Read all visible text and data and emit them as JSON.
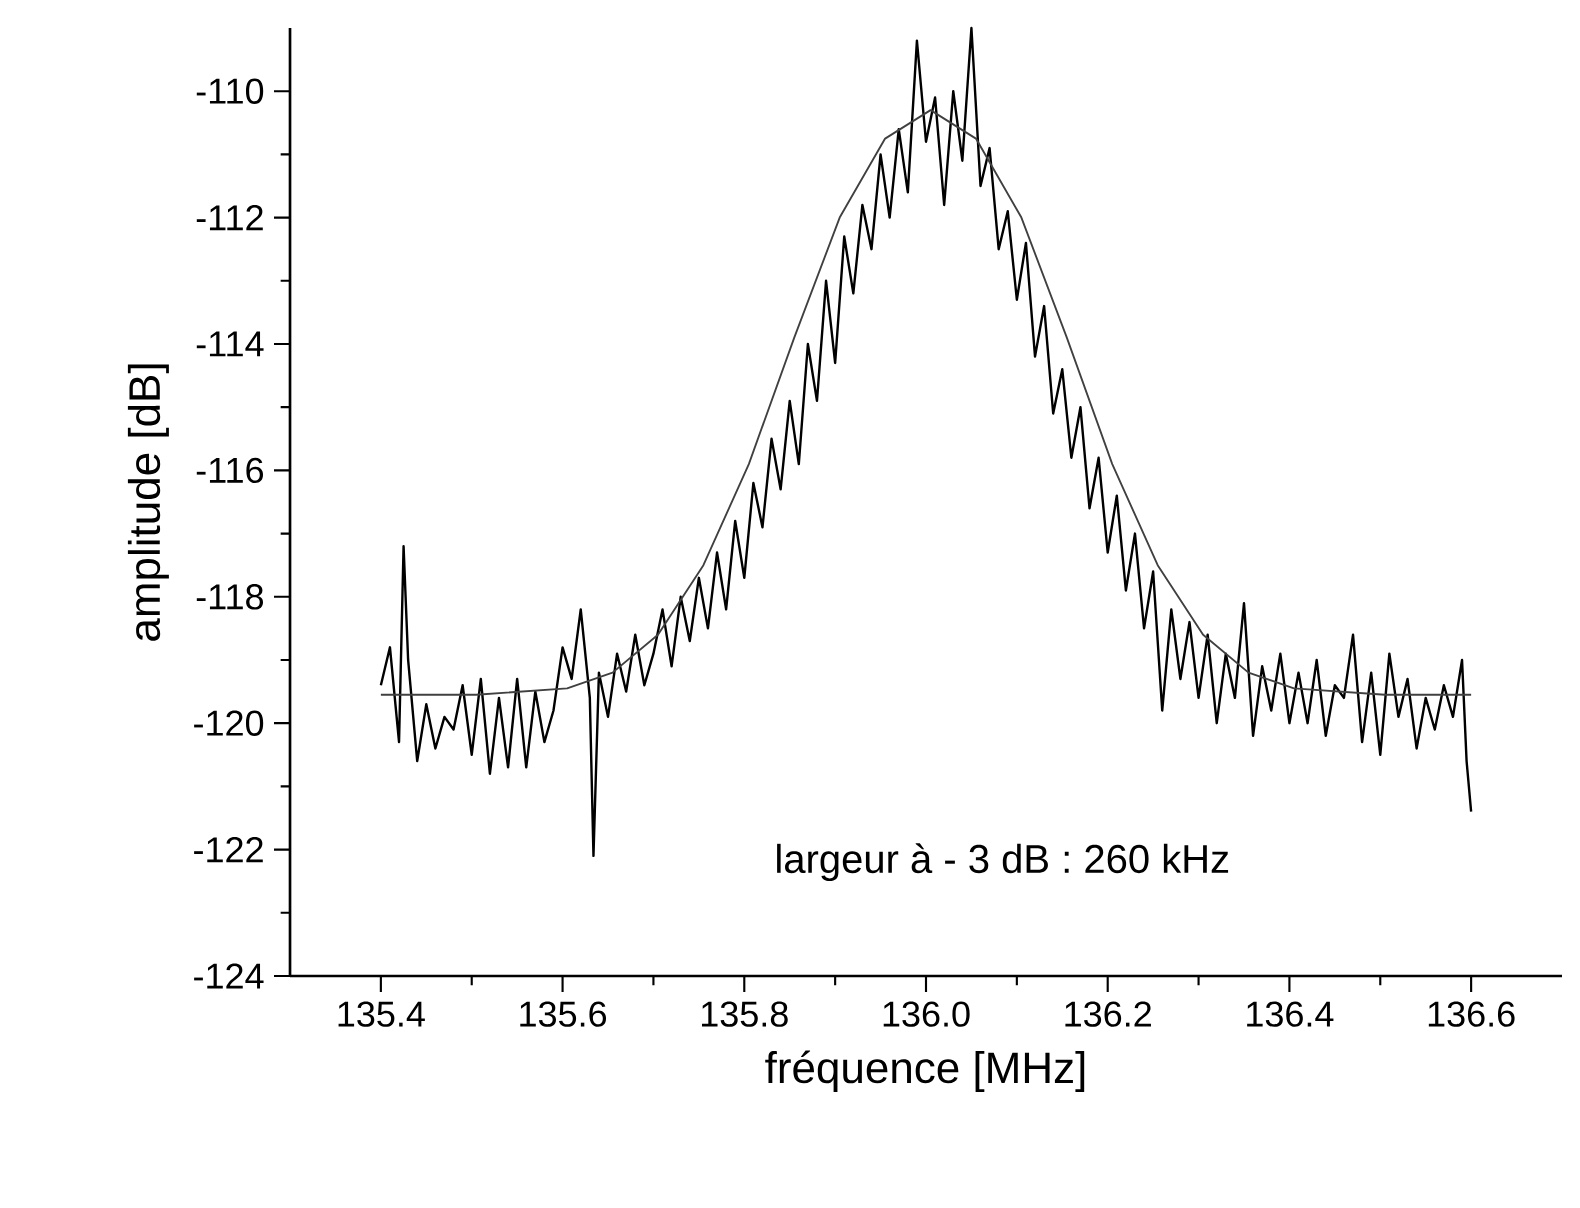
{
  "chart_data": {
    "type": "line",
    "xlabel": "fréquence [MHz]",
    "ylabel": "amplitude [dB]",
    "annotations": [
      "largeur à - 3 dB :  260 kHz"
    ],
    "xlim": [
      135.3,
      136.7
    ],
    "ylim": [
      -124,
      -109
    ],
    "xticks": [
      {
        "value": 135.4,
        "label": "135.4"
      },
      {
        "value": 135.6,
        "label": "135.6"
      },
      {
        "value": 135.8,
        "label": "135.8"
      },
      {
        "value": 136.0,
        "label": "136.0"
      },
      {
        "value": 136.2,
        "label": "136.2"
      },
      {
        "value": 136.4,
        "label": "136.4"
      },
      {
        "value": 136.6,
        "label": "136.6"
      }
    ],
    "yticks": [
      -124,
      -122,
      -120,
      -118,
      -116,
      -114,
      -112,
      -110
    ],
    "grid": false,
    "marker": "none",
    "line_style": "solid",
    "series": [
      {
        "color": "#000000",
        "x": [
          135.4,
          135.41,
          135.42,
          135.425,
          135.43,
          135.44,
          135.45,
          135.46,
          135.47,
          135.48,
          135.49,
          135.5,
          135.51,
          135.52,
          135.53,
          135.54,
          135.55,
          135.56,
          135.57,
          135.58,
          135.59,
          135.6,
          135.61,
          135.62,
          135.63,
          135.634,
          135.64,
          135.65,
          135.66,
          135.67,
          135.68,
          135.69,
          135.7,
          135.71,
          135.72,
          135.73,
          135.74,
          135.75,
          135.76,
          135.77,
          135.78,
          135.79,
          135.8,
          135.81,
          135.82,
          135.83,
          135.84,
          135.85,
          135.86,
          135.87,
          135.88,
          135.89,
          135.9,
          135.91,
          135.92,
          135.93,
          135.94,
          135.95,
          135.96,
          135.97,
          135.98,
          135.99,
          136.0,
          136.01,
          136.02,
          136.03,
          136.04,
          136.05,
          136.06,
          136.07,
          136.08,
          136.09,
          136.1,
          136.11,
          136.12,
          136.13,
          136.14,
          136.15,
          136.16,
          136.17,
          136.18,
          136.19,
          136.2,
          136.21,
          136.22,
          136.23,
          136.24,
          136.25,
          136.26,
          136.27,
          136.28,
          136.29,
          136.3,
          136.31,
          136.32,
          136.33,
          136.34,
          136.35,
          136.36,
          136.37,
          136.38,
          136.39,
          136.4,
          136.41,
          136.42,
          136.43,
          136.44,
          136.45,
          136.46,
          136.47,
          136.48,
          136.49,
          136.5,
          136.51,
          136.52,
          136.53,
          136.54,
          136.55,
          136.56,
          136.57,
          136.58,
          136.59,
          136.595,
          136.6
        ],
        "values": [
          -119.4,
          -118.8,
          -120.3,
          -117.2,
          -119.0,
          -120.6,
          -119.7,
          -120.4,
          -119.9,
          -120.1,
          -119.4,
          -120.5,
          -119.3,
          -120.8,
          -119.6,
          -120.7,
          -119.3,
          -120.7,
          -119.5,
          -120.3,
          -119.8,
          -118.8,
          -119.3,
          -118.2,
          -119.6,
          -122.1,
          -119.2,
          -119.9,
          -118.9,
          -119.5,
          -118.6,
          -119.4,
          -118.9,
          -118.2,
          -119.1,
          -118.0,
          -118.7,
          -117.7,
          -118.5,
          -117.3,
          -118.2,
          -116.8,
          -117.7,
          -116.2,
          -116.9,
          -115.5,
          -116.3,
          -114.9,
          -115.9,
          -114.0,
          -114.9,
          -113.0,
          -114.3,
          -112.3,
          -113.2,
          -111.8,
          -112.5,
          -111.0,
          -112.0,
          -110.6,
          -111.6,
          -109.2,
          -110.8,
          -110.1,
          -111.8,
          -110.0,
          -111.1,
          -109.0,
          -111.5,
          -110.9,
          -112.5,
          -111.9,
          -113.3,
          -112.4,
          -114.2,
          -113.4,
          -115.1,
          -114.4,
          -115.8,
          -115.0,
          -116.6,
          -115.8,
          -117.3,
          -116.4,
          -117.9,
          -117.0,
          -118.5,
          -117.6,
          -119.8,
          -118.2,
          -119.3,
          -118.4,
          -119.6,
          -118.6,
          -120.0,
          -118.9,
          -119.6,
          -118.1,
          -120.2,
          -119.1,
          -119.8,
          -118.9,
          -120.0,
          -119.2,
          -120.0,
          -119.0,
          -120.2,
          -119.4,
          -119.6,
          -118.6,
          -120.3,
          -119.2,
          -120.5,
          -118.9,
          -119.9,
          -119.3,
          -120.4,
          -119.6,
          -120.1,
          -119.4,
          -119.9,
          -119.0,
          -120.6,
          -121.4
        ]
      },
      {
        "color": "#404040",
        "x": [
          135.4,
          135.505,
          135.605,
          135.655,
          135.705,
          135.755,
          135.805,
          135.855,
          135.905,
          135.955,
          136.005,
          136.055,
          136.105,
          136.155,
          136.205,
          136.255,
          136.305,
          136.355,
          136.405,
          136.505,
          136.6
        ],
        "values": [
          -119.55,
          -119.55,
          -119.45,
          -119.2,
          -118.6,
          -117.5,
          -115.9,
          -113.9,
          -112.0,
          -110.75,
          -110.3,
          -110.75,
          -112.0,
          -113.9,
          -115.9,
          -117.5,
          -118.6,
          -119.2,
          -119.45,
          -119.55,
          -119.55
        ]
      }
    ]
  }
}
